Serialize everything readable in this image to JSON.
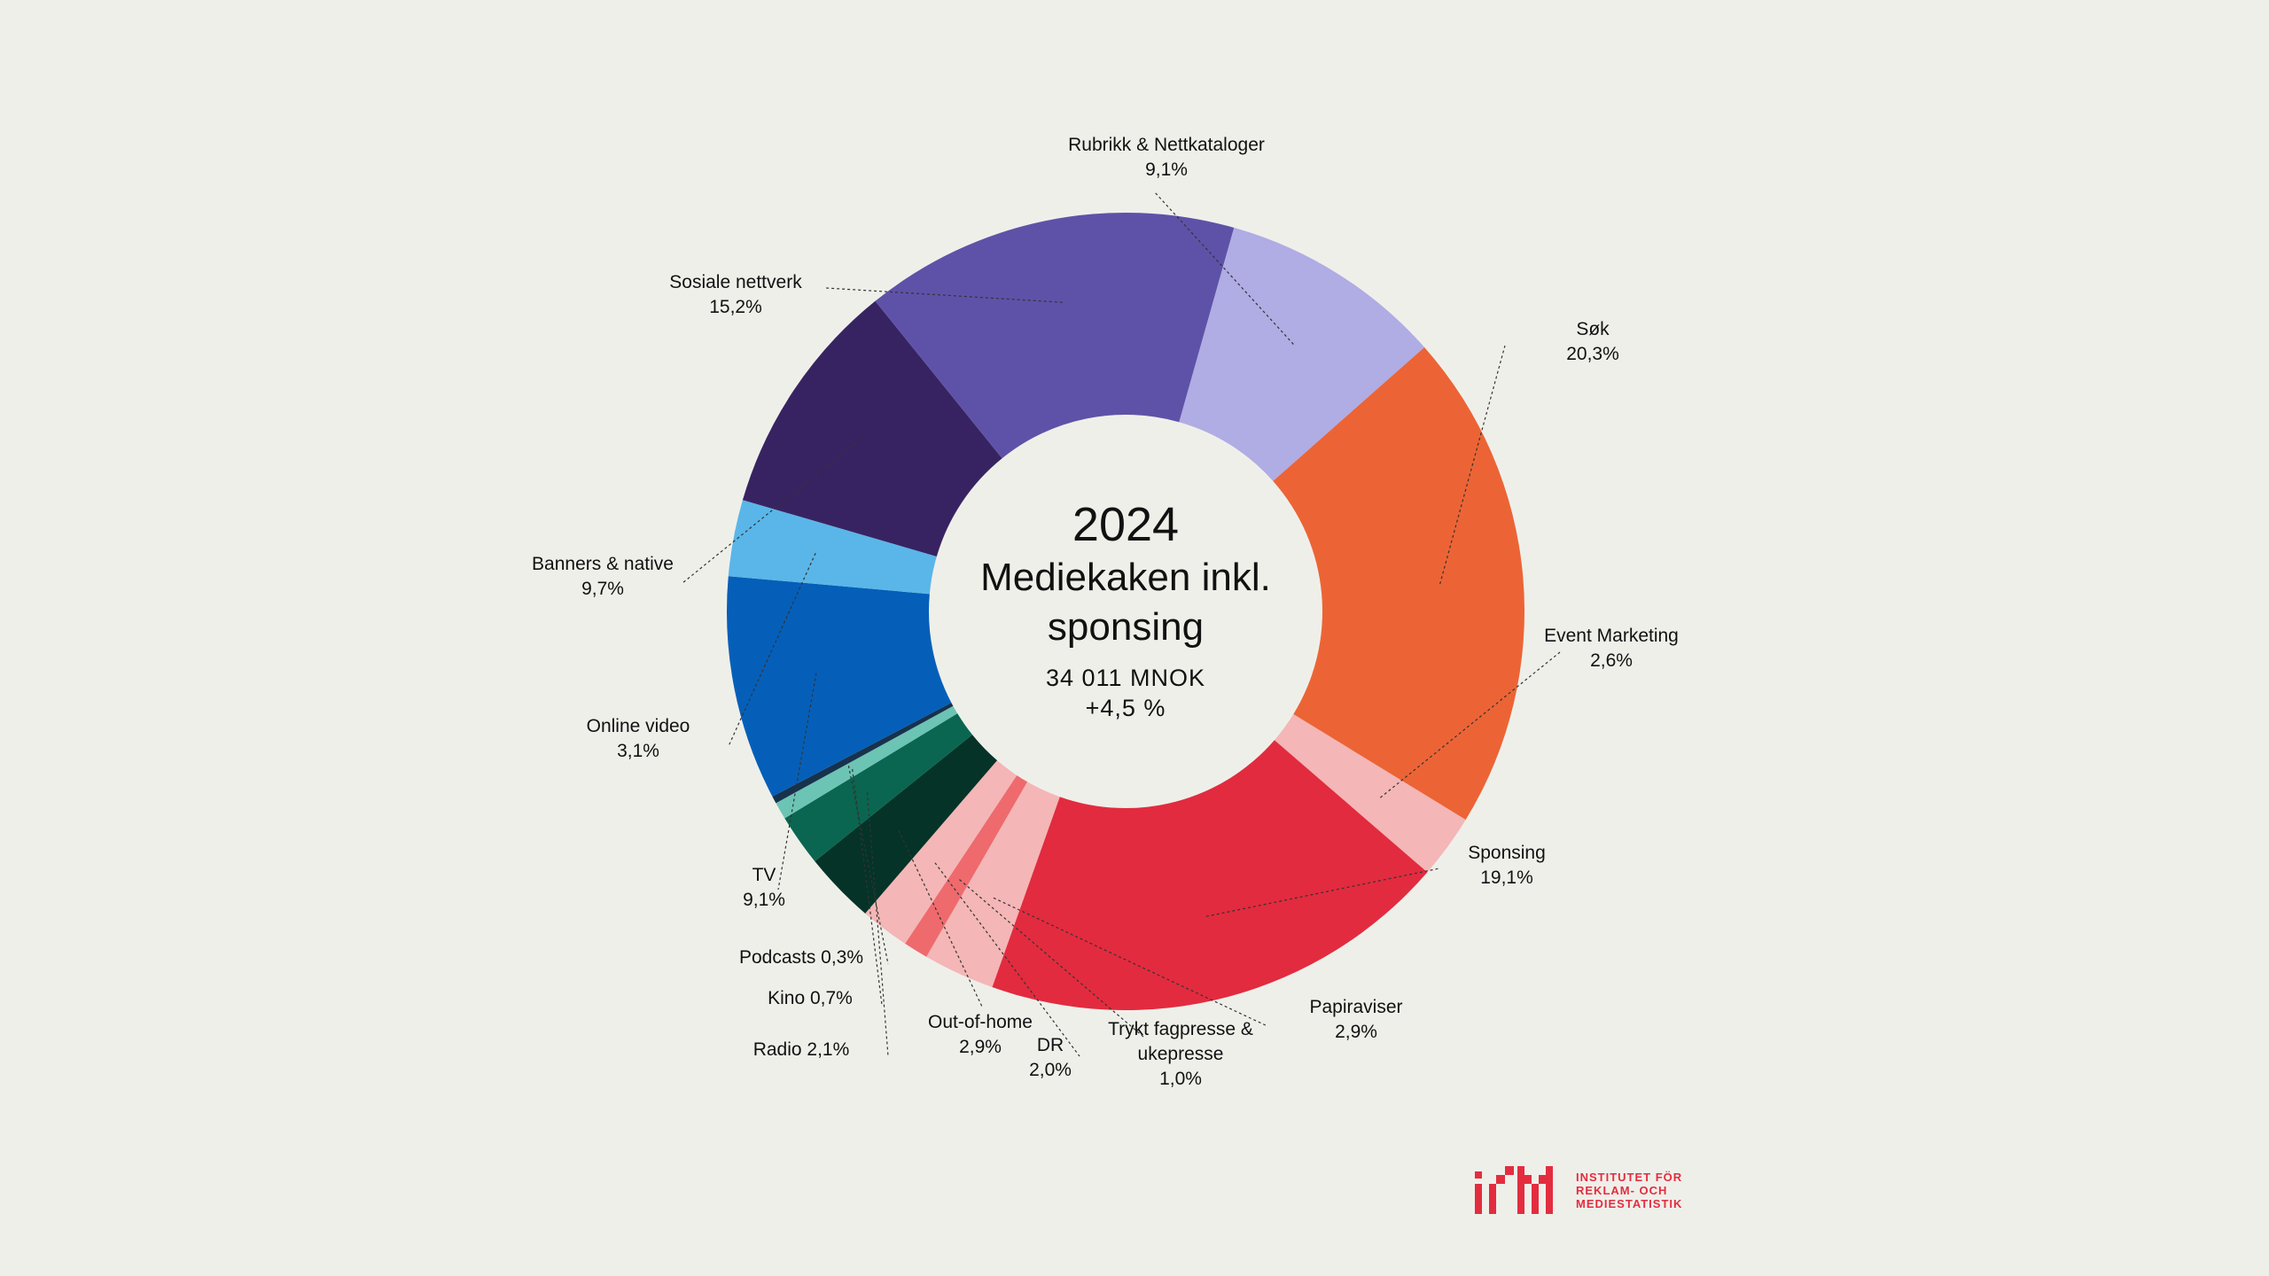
{
  "chart_data": {
    "type": "pie",
    "donut": true,
    "title": "2024",
    "subtitle": "Mediekaken inkl. sponsing",
    "total": "34 011 MNOK",
    "change": "+4,5 %",
    "slices": [
      {
        "name": "Søk",
        "value": 20.3,
        "label": "20,3%",
        "color": "#ec6435"
      },
      {
        "name": "Event Marketing",
        "value": 2.6,
        "label": "2,6%",
        "color": "#f4b6b6"
      },
      {
        "name": "Sponsing",
        "value": 19.1,
        "label": "19,1%",
        "color": "#e22b3f"
      },
      {
        "name": "Papiraviser",
        "value": 2.9,
        "label": "2,9%",
        "color": "#f4b6b6"
      },
      {
        "name": "Trykt fagpresse & ukepresse",
        "value": 1.0,
        "label": "1,0%",
        "color": "#ee6a6d"
      },
      {
        "name": "DR",
        "value": 2.0,
        "label": "2,0%",
        "color": "#f4b6b6"
      },
      {
        "name": "Out-of-home",
        "value": 2.9,
        "label": "2,9%",
        "color": "#053328"
      },
      {
        "name": "Radio",
        "value": 2.1,
        "label": "2,1%",
        "color": "#0a6650"
      },
      {
        "name": "Kino",
        "value": 0.7,
        "label": "0,7%",
        "color": "#6cc4b4"
      },
      {
        "name": "Podcasts",
        "value": 0.3,
        "label": "0,3%",
        "color": "#17324d"
      },
      {
        "name": "TV",
        "value": 9.1,
        "label": "9,1%",
        "color": "#055fb8"
      },
      {
        "name": "Online video",
        "value": 3.1,
        "label": "3,1%",
        "color": "#5ab6e8"
      },
      {
        "name": "Banners & native",
        "value": 9.7,
        "label": "9,7%",
        "color": "#382362"
      },
      {
        "name": "Sosiale nettverk",
        "value": 15.2,
        "label": "15,2%",
        "color": "#5e52a8"
      },
      {
        "name": "Rubrikk & Nettkataloger",
        "value": 9.1,
        "label": "9,1%",
        "color": "#b0ace4"
      }
    ],
    "labels": [
      {
        "lines": [
          "Søk",
          "20,3%"
        ]
      },
      {
        "lines": [
          "Event Marketing",
          "2,6%"
        ]
      },
      {
        "lines": [
          "Sponsing",
          "19,1%"
        ]
      },
      {
        "lines": [
          "Papiraviser",
          "2,9%"
        ]
      },
      {
        "lines": [
          "Trykt fagpresse &",
          "ukepresse",
          "1,0%"
        ]
      },
      {
        "lines": [
          "DR",
          "2,0%"
        ]
      },
      {
        "lines": [
          "Out-of-home",
          "2,9%"
        ]
      },
      {
        "lines": [
          "Radio 2,1%"
        ]
      },
      {
        "lines": [
          "Kino 0,7%"
        ]
      },
      {
        "lines": [
          "Podcasts 0,3%"
        ]
      },
      {
        "lines": [
          "TV",
          "9,1%"
        ]
      },
      {
        "lines": [
          "Online video",
          "3,1%"
        ]
      },
      {
        "lines": [
          "Banners & native",
          "9,7%"
        ]
      },
      {
        "lines": [
          "Sosiale nettverk",
          "15,2%"
        ]
      },
      {
        "lines": [
          "Rubrikk & Nettkataloger",
          "9,1%"
        ]
      }
    ]
  },
  "logo": {
    "mark": "irm",
    "line1": "INSTITUTET FÖR",
    "line2": "REKLAM- OCH",
    "line3": "MEDIESTATISTIK"
  }
}
